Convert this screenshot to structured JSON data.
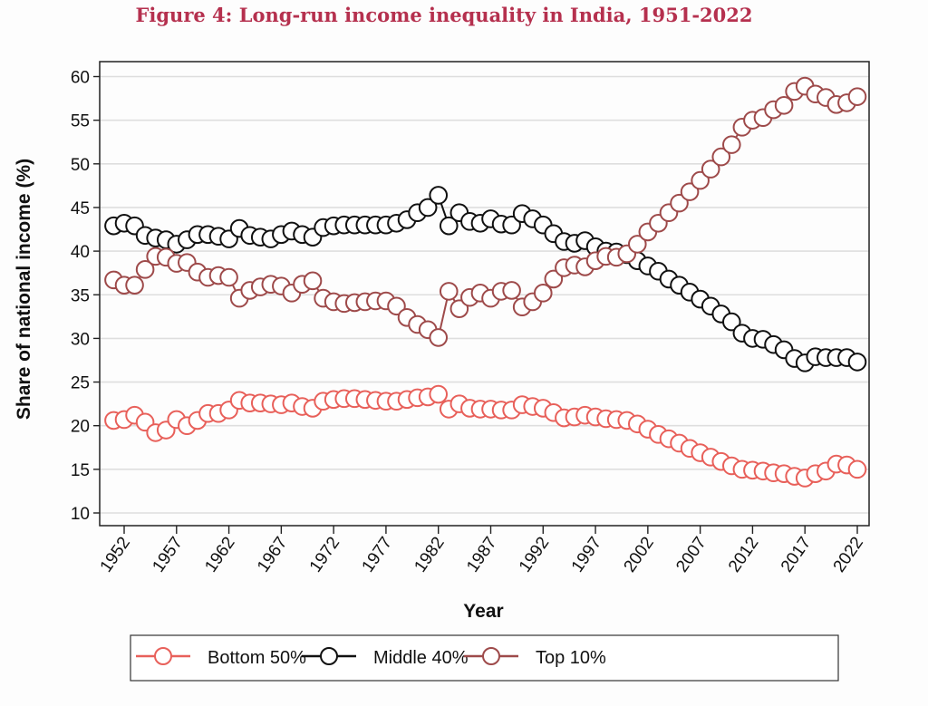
{
  "chart_data": {
    "type": "line",
    "title": "Figure 4: Long-run income inequality in India, 1951-2022",
    "xlabel": "Year",
    "ylabel": "Share of national income (%)",
    "xlim": [
      1951,
      2022
    ],
    "ylim": [
      10,
      60
    ],
    "grid": true,
    "legend_position": "bottom",
    "x_ticks": [
      1952,
      1957,
      1962,
      1967,
      1972,
      1977,
      1982,
      1987,
      1992,
      1997,
      2002,
      2007,
      2012,
      2017,
      2022
    ],
    "y_ticks": [
      10,
      15,
      20,
      25,
      30,
      35,
      40,
      45,
      50,
      55,
      60
    ],
    "x": [
      1951,
      1952,
      1953,
      1954,
      1955,
      1956,
      1957,
      1958,
      1959,
      1960,
      1961,
      1962,
      1963,
      1964,
      1965,
      1966,
      1967,
      1968,
      1969,
      1970,
      1971,
      1972,
      1973,
      1974,
      1975,
      1976,
      1977,
      1978,
      1979,
      1980,
      1981,
      1982,
      1983,
      1984,
      1985,
      1986,
      1987,
      1988,
      1989,
      1990,
      1991,
      1992,
      1993,
      1994,
      1995,
      1996,
      1997,
      1998,
      1999,
      2000,
      2001,
      2002,
      2003,
      2004,
      2005,
      2006,
      2007,
      2008,
      2009,
      2010,
      2011,
      2012,
      2013,
      2014,
      2015,
      2016,
      2017,
      2018,
      2019,
      2020,
      2021,
      2022
    ],
    "series": [
      {
        "name": "Bottom 50%",
        "color": "#e8605a",
        "values": [
          20.6,
          20.7,
          21.2,
          20.4,
          19.2,
          19.5,
          20.7,
          20.0,
          20.6,
          21.4,
          21.4,
          21.8,
          22.9,
          22.6,
          22.6,
          22.5,
          22.4,
          22.6,
          22.2,
          22.0,
          22.8,
          23.0,
          23.1,
          23.1,
          23.0,
          22.9,
          22.8,
          22.8,
          23.0,
          23.2,
          23.3,
          23.6,
          21.9,
          22.5,
          22.0,
          21.9,
          21.9,
          21.8,
          21.8,
          22.4,
          22.2,
          22.0,
          21.5,
          20.9,
          21.0,
          21.2,
          21.0,
          20.8,
          20.7,
          20.6,
          20.2,
          19.6,
          19.0,
          18.5,
          18.0,
          17.4,
          16.9,
          16.4,
          15.9,
          15.4,
          15.0,
          14.9,
          14.8,
          14.6,
          14.5,
          14.2,
          14.0,
          14.5,
          14.8,
          15.6,
          15.5,
          15.0
        ]
      },
      {
        "name": "Middle 40%",
        "color": "#111111",
        "values": [
          42.9,
          43.2,
          42.9,
          41.8,
          41.5,
          41.3,
          40.8,
          41.3,
          41.9,
          41.9,
          41.7,
          41.4,
          42.6,
          41.8,
          41.6,
          41.4,
          41.9,
          42.3,
          41.9,
          41.6,
          42.7,
          42.9,
          43.0,
          43.0,
          43.0,
          43.0,
          43.0,
          43.2,
          43.6,
          44.4,
          45.0,
          46.4,
          42.9,
          44.4,
          43.4,
          43.2,
          43.7,
          43.1,
          43.0,
          44.3,
          43.7,
          43.0,
          42.0,
          41.1,
          40.9,
          41.2,
          40.5,
          40.0,
          39.9,
          39.6,
          38.9,
          38.3,
          37.7,
          36.8,
          36.1,
          35.3,
          34.5,
          33.7,
          32.8,
          31.9,
          30.6,
          30.0,
          29.9,
          29.3,
          28.7,
          27.7,
          27.2,
          27.9,
          27.8,
          27.8,
          27.8,
          27.3
        ]
      },
      {
        "name": "Top 10%",
        "color": "#9e4a4a",
        "values": [
          36.7,
          36.1,
          36.1,
          37.9,
          39.4,
          39.3,
          38.6,
          38.7,
          37.6,
          37.0,
          37.2,
          37.0,
          34.6,
          35.5,
          35.9,
          36.2,
          36.0,
          35.2,
          36.2,
          36.6,
          34.6,
          34.2,
          34.0,
          34.1,
          34.2,
          34.3,
          34.3,
          33.7,
          32.4,
          31.6,
          31.0,
          30.1,
          35.4,
          33.4,
          34.7,
          35.2,
          34.6,
          35.4,
          35.5,
          33.6,
          34.2,
          35.2,
          36.8,
          38.1,
          38.4,
          38.2,
          38.9,
          39.4,
          39.3,
          39.7,
          40.8,
          42.2,
          43.2,
          44.4,
          45.5,
          46.8,
          48.1,
          49.4,
          50.8,
          52.2,
          54.2,
          55.0,
          55.3,
          56.2,
          56.7,
          58.3,
          58.9,
          58.0,
          57.6,
          56.8,
          57.0,
          57.7
        ]
      }
    ]
  }
}
